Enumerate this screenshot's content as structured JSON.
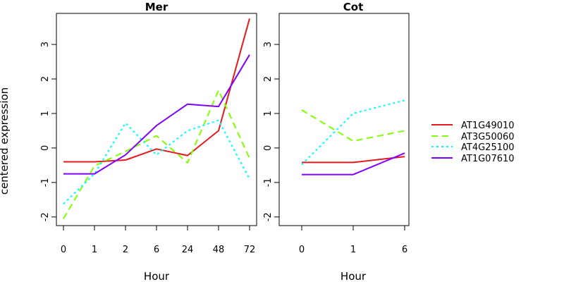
{
  "chart_data": {
    "ylabel": "centered expression",
    "ylim": [
      -2.25,
      3.9
    ],
    "yticks": [
      -2,
      -1,
      0,
      1,
      2,
      3
    ],
    "grid": false,
    "legend_position": "right",
    "panels": [
      {
        "type": "line",
        "title": "Mer",
        "xlabel": "Hour",
        "categories": [
          "0",
          "1",
          "2",
          "6",
          "24",
          "48",
          "72"
        ],
        "series": [
          {
            "name": "AT1G49010",
            "color": "#e41a1c",
            "dash": "solid",
            "values": [
              -0.4,
              -0.4,
              -0.35,
              -0.03,
              -0.22,
              0.5,
              3.75
            ]
          },
          {
            "name": "AT3G50060",
            "color": "#7fff00",
            "dash": "dashed",
            "values": [
              -2.05,
              -0.52,
              -0.1,
              0.35,
              -0.43,
              1.67,
              -0.3
            ]
          },
          {
            "name": "AT4G25100",
            "color": "#00ffff",
            "dash": "dotted",
            "values": [
              -1.62,
              -0.75,
              0.72,
              -0.2,
              0.5,
              0.8,
              -0.9
            ]
          },
          {
            "name": "AT1G07610",
            "color": "#8000ff",
            "dash": "solid",
            "values": [
              -0.75,
              -0.75,
              -0.2,
              0.65,
              1.27,
              1.2,
              2.7
            ]
          }
        ]
      },
      {
        "type": "line",
        "title": "Cot",
        "xlabel": "Hour",
        "categories": [
          "0",
          "1",
          "6"
        ],
        "series": [
          {
            "name": "AT1G49010",
            "color": "#e41a1c",
            "dash": "solid",
            "values": [
              -0.42,
              -0.42,
              -0.25
            ]
          },
          {
            "name": "AT3G50060",
            "color": "#7fff00",
            "dash": "dashed",
            "values": [
              1.1,
              0.2,
              0.5
            ]
          },
          {
            "name": "AT4G25100",
            "color": "#00ffff",
            "dash": "dotted",
            "values": [
              -0.48,
              1.0,
              1.38
            ]
          },
          {
            "name": "AT1G07610",
            "color": "#8000ff",
            "dash": "solid",
            "values": [
              -0.77,
              -0.77,
              -0.15
            ]
          }
        ]
      }
    ]
  }
}
